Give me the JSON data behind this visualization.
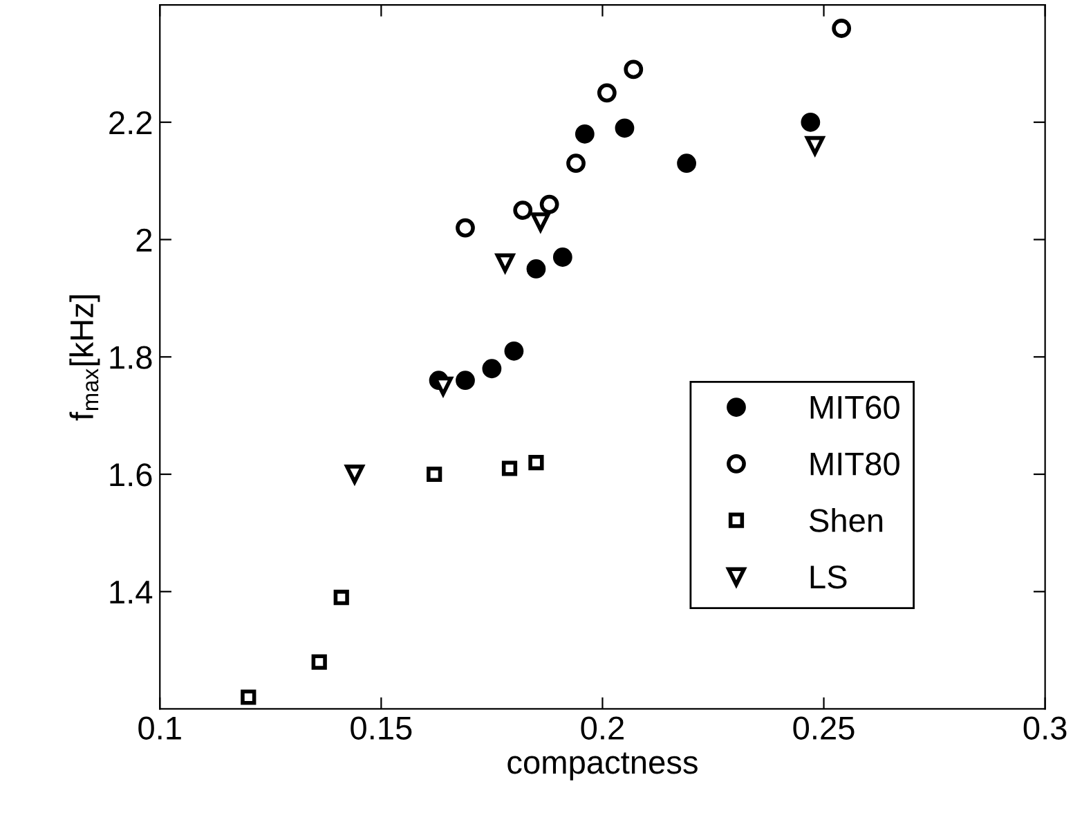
{
  "chart_data": {
    "type": "scatter",
    "xlabel": "compactness",
    "ylabel": "f$_{max}$[kHz]",
    "xlim": [
      0.1,
      0.3
    ],
    "xticks": [
      0.1,
      0.15,
      0.2,
      0.25,
      0.3
    ],
    "ylim": [
      1.2,
      2.4
    ],
    "yticks": [
      1.4,
      1.6,
      1.8,
      2,
      2.2
    ],
    "grid": false,
    "legend": "bottom right",
    "series": [
      {
        "name": "MIT60",
        "color": "#000000",
        "marker": "circle",
        "x": [
          0.163,
          0.169,
          0.175,
          0.18,
          0.185,
          0.191,
          0.196,
          0.205,
          0.219,
          0.247
        ],
        "values": [
          1.76,
          1.76,
          1.78,
          1.81,
          1.95,
          1.97,
          2.18,
          2.19,
          2.13,
          2.2
        ]
      },
      {
        "name": "MIT80",
        "color": "#000000",
        "marker": "circle",
        "x": [
          0.169,
          0.182,
          0.188,
          0.194,
          0.201,
          0.207,
          0.254
        ],
        "values": [
          2.02,
          2.05,
          2.06,
          2.13,
          2.25,
          2.29,
          2.36
        ]
      },
      {
        "name": "Shen",
        "color": "#000000",
        "marker": "square",
        "x": [
          0.12,
          0.136,
          0.141,
          0.162,
          0.179,
          0.185
        ],
        "values": [
          1.22,
          1.28,
          1.39,
          1.6,
          1.61,
          1.62
        ]
      },
      {
        "name": "LS",
        "color": "#000000",
        "marker": "triangle",
        "x": [
          0.144,
          0.164,
          0.178,
          0.186,
          0.248
        ],
        "values": [
          1.6,
          1.75,
          1.96,
          2.03,
          2.16
        ]
      }
    ]
  }
}
